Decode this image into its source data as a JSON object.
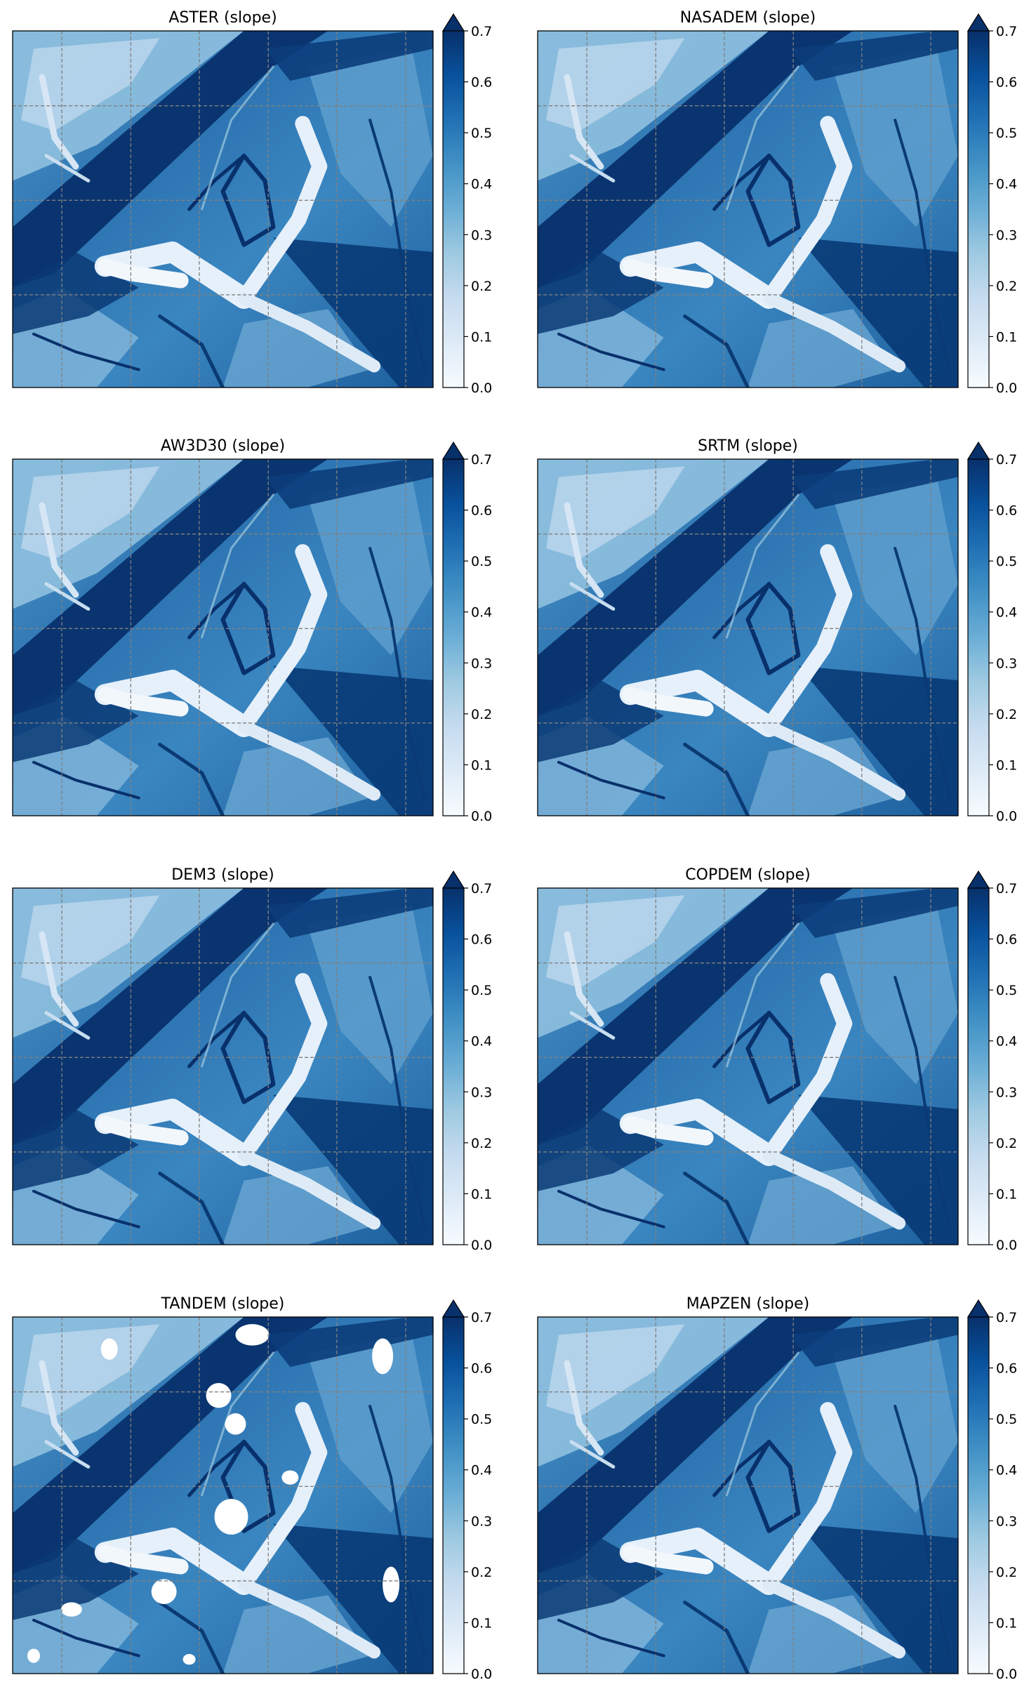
{
  "figure": {
    "colormap": "Blues",
    "colormap_stops": [
      "#f7fbff",
      "#deebf7",
      "#c6dbef",
      "#9ecae1",
      "#6baed6",
      "#4292c6",
      "#2171b5",
      "#08519c",
      "#08306b"
    ],
    "grid_color": "#808080",
    "grid_style": "dashed"
  },
  "chart_data": [
    {
      "type": "heatmap",
      "title": "ASTER (slope)",
      "colorbar": {
        "vmin": 0.0,
        "vmax": 0.7,
        "extend": "max",
        "ticks": [
          "0.0",
          "0.1",
          "0.2",
          "0.3",
          "0.4",
          "0.5",
          "0.6",
          "0.7"
        ]
      },
      "grid": true,
      "axis_ticks_labeled": false,
      "gaps": false
    },
    {
      "type": "heatmap",
      "title": "NASADEM (slope)",
      "colorbar": {
        "vmin": 0.0,
        "vmax": 0.7,
        "extend": "max",
        "ticks": [
          "0.0",
          "0.1",
          "0.2",
          "0.3",
          "0.4",
          "0.5",
          "0.6",
          "0.7"
        ]
      },
      "grid": true,
      "axis_ticks_labeled": false,
      "gaps": false
    },
    {
      "type": "heatmap",
      "title": "AW3D30 (slope)",
      "colorbar": {
        "vmin": 0.0,
        "vmax": 0.7,
        "extend": "max",
        "ticks": [
          "0.0",
          "0.1",
          "0.2",
          "0.3",
          "0.4",
          "0.5",
          "0.6",
          "0.7"
        ]
      },
      "grid": true,
      "axis_ticks_labeled": false,
      "gaps": false
    },
    {
      "type": "heatmap",
      "title": "SRTM (slope)",
      "colorbar": {
        "vmin": 0.0,
        "vmax": 0.7,
        "extend": "max",
        "ticks": [
          "0.0",
          "0.1",
          "0.2",
          "0.3",
          "0.4",
          "0.5",
          "0.6",
          "0.7"
        ]
      },
      "grid": true,
      "axis_ticks_labeled": false,
      "gaps": false
    },
    {
      "type": "heatmap",
      "title": "DEM3 (slope)",
      "colorbar": {
        "vmin": 0.0,
        "vmax": 0.7,
        "extend": "max",
        "ticks": [
          "0.0",
          "0.1",
          "0.2",
          "0.3",
          "0.4",
          "0.5",
          "0.6",
          "0.7"
        ]
      },
      "grid": true,
      "axis_ticks_labeled": false,
      "gaps": false
    },
    {
      "type": "heatmap",
      "title": "COPDEM (slope)",
      "colorbar": {
        "vmin": 0.0,
        "vmax": 0.7,
        "extend": "max",
        "ticks": [
          "0.0",
          "0.1",
          "0.2",
          "0.3",
          "0.4",
          "0.5",
          "0.6",
          "0.7"
        ]
      },
      "grid": true,
      "axis_ticks_labeled": false,
      "gaps": false
    },
    {
      "type": "heatmap",
      "title": "TANDEM (slope)",
      "colorbar": {
        "vmin": 0.0,
        "vmax": 0.7,
        "extend": "max",
        "ticks": [
          "0.0",
          "0.1",
          "0.2",
          "0.3",
          "0.4",
          "0.5",
          "0.6",
          "0.7"
        ]
      },
      "grid": true,
      "axis_ticks_labeled": false,
      "gaps": true
    },
    {
      "type": "heatmap",
      "title": "MAPZEN (slope)",
      "colorbar": {
        "vmin": 0.0,
        "vmax": 0.7,
        "extend": "max",
        "ticks": [
          "0.0",
          "0.1",
          "0.2",
          "0.3",
          "0.4",
          "0.5",
          "0.6",
          "0.7"
        ]
      },
      "grid": true,
      "axis_ticks_labeled": false,
      "gaps": false
    }
  ]
}
